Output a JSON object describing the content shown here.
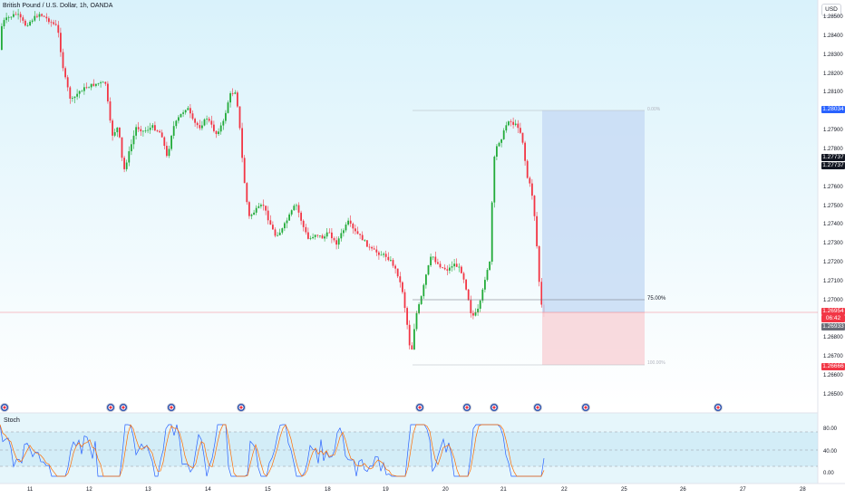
{
  "symbol_title": "British Pound / U.S. Dollar, 1h, OANDA",
  "currency_button": "USD",
  "indicator_name": "Stoch",
  "price_axis_ticks": [
    "1.28500",
    "1.28400",
    "1.28300",
    "1.28200",
    "1.28100",
    "1.28000",
    "1.27900",
    "1.27800",
    "1.27700",
    "1.27600",
    "1.27500",
    "1.27400",
    "1.27300",
    "1.27200",
    "1.27100",
    "1.27000",
    "1.26900",
    "1.26800",
    "1.26700",
    "1.26600",
    "1.26500"
  ],
  "osc_axis_ticks": [
    "80.00",
    "40.00",
    "0.00"
  ],
  "time_axis_ticks": [
    "11",
    "12",
    "13",
    "14",
    "15",
    "18",
    "19",
    "20",
    "21",
    "22",
    "25",
    "26",
    "27",
    "28"
  ],
  "badges": {
    "target_price": "1.28034",
    "current_price_a": "1.27737",
    "current_price_b": "1.27737",
    "last_price": "1.26954",
    "countdown": "06:42",
    "last_price_b": "1.26933",
    "stop_price": "1.26666"
  },
  "position_tool": {
    "top_label": "0.00%",
    "mid_label": "75.00%",
    "bottom_label": "100.00%"
  },
  "colors": {
    "up": "#089981",
    "up_bright": "#22ab39",
    "down": "#f23645",
    "target_zone": "#c8dcf5",
    "stop_zone": "#f8d3d8",
    "badge_blue": "#2962ff",
    "badge_red": "#f23645",
    "badge_black": "#131722"
  },
  "event_markers": [
    "flag-uk",
    "flag-us",
    "flag-uk",
    "flag-us",
    "flag-uk",
    "flag-us",
    "flag-us",
    "flag-uk",
    "flag-us",
    "flag-uk",
    "flag-uk",
    "flag-us"
  ]
}
